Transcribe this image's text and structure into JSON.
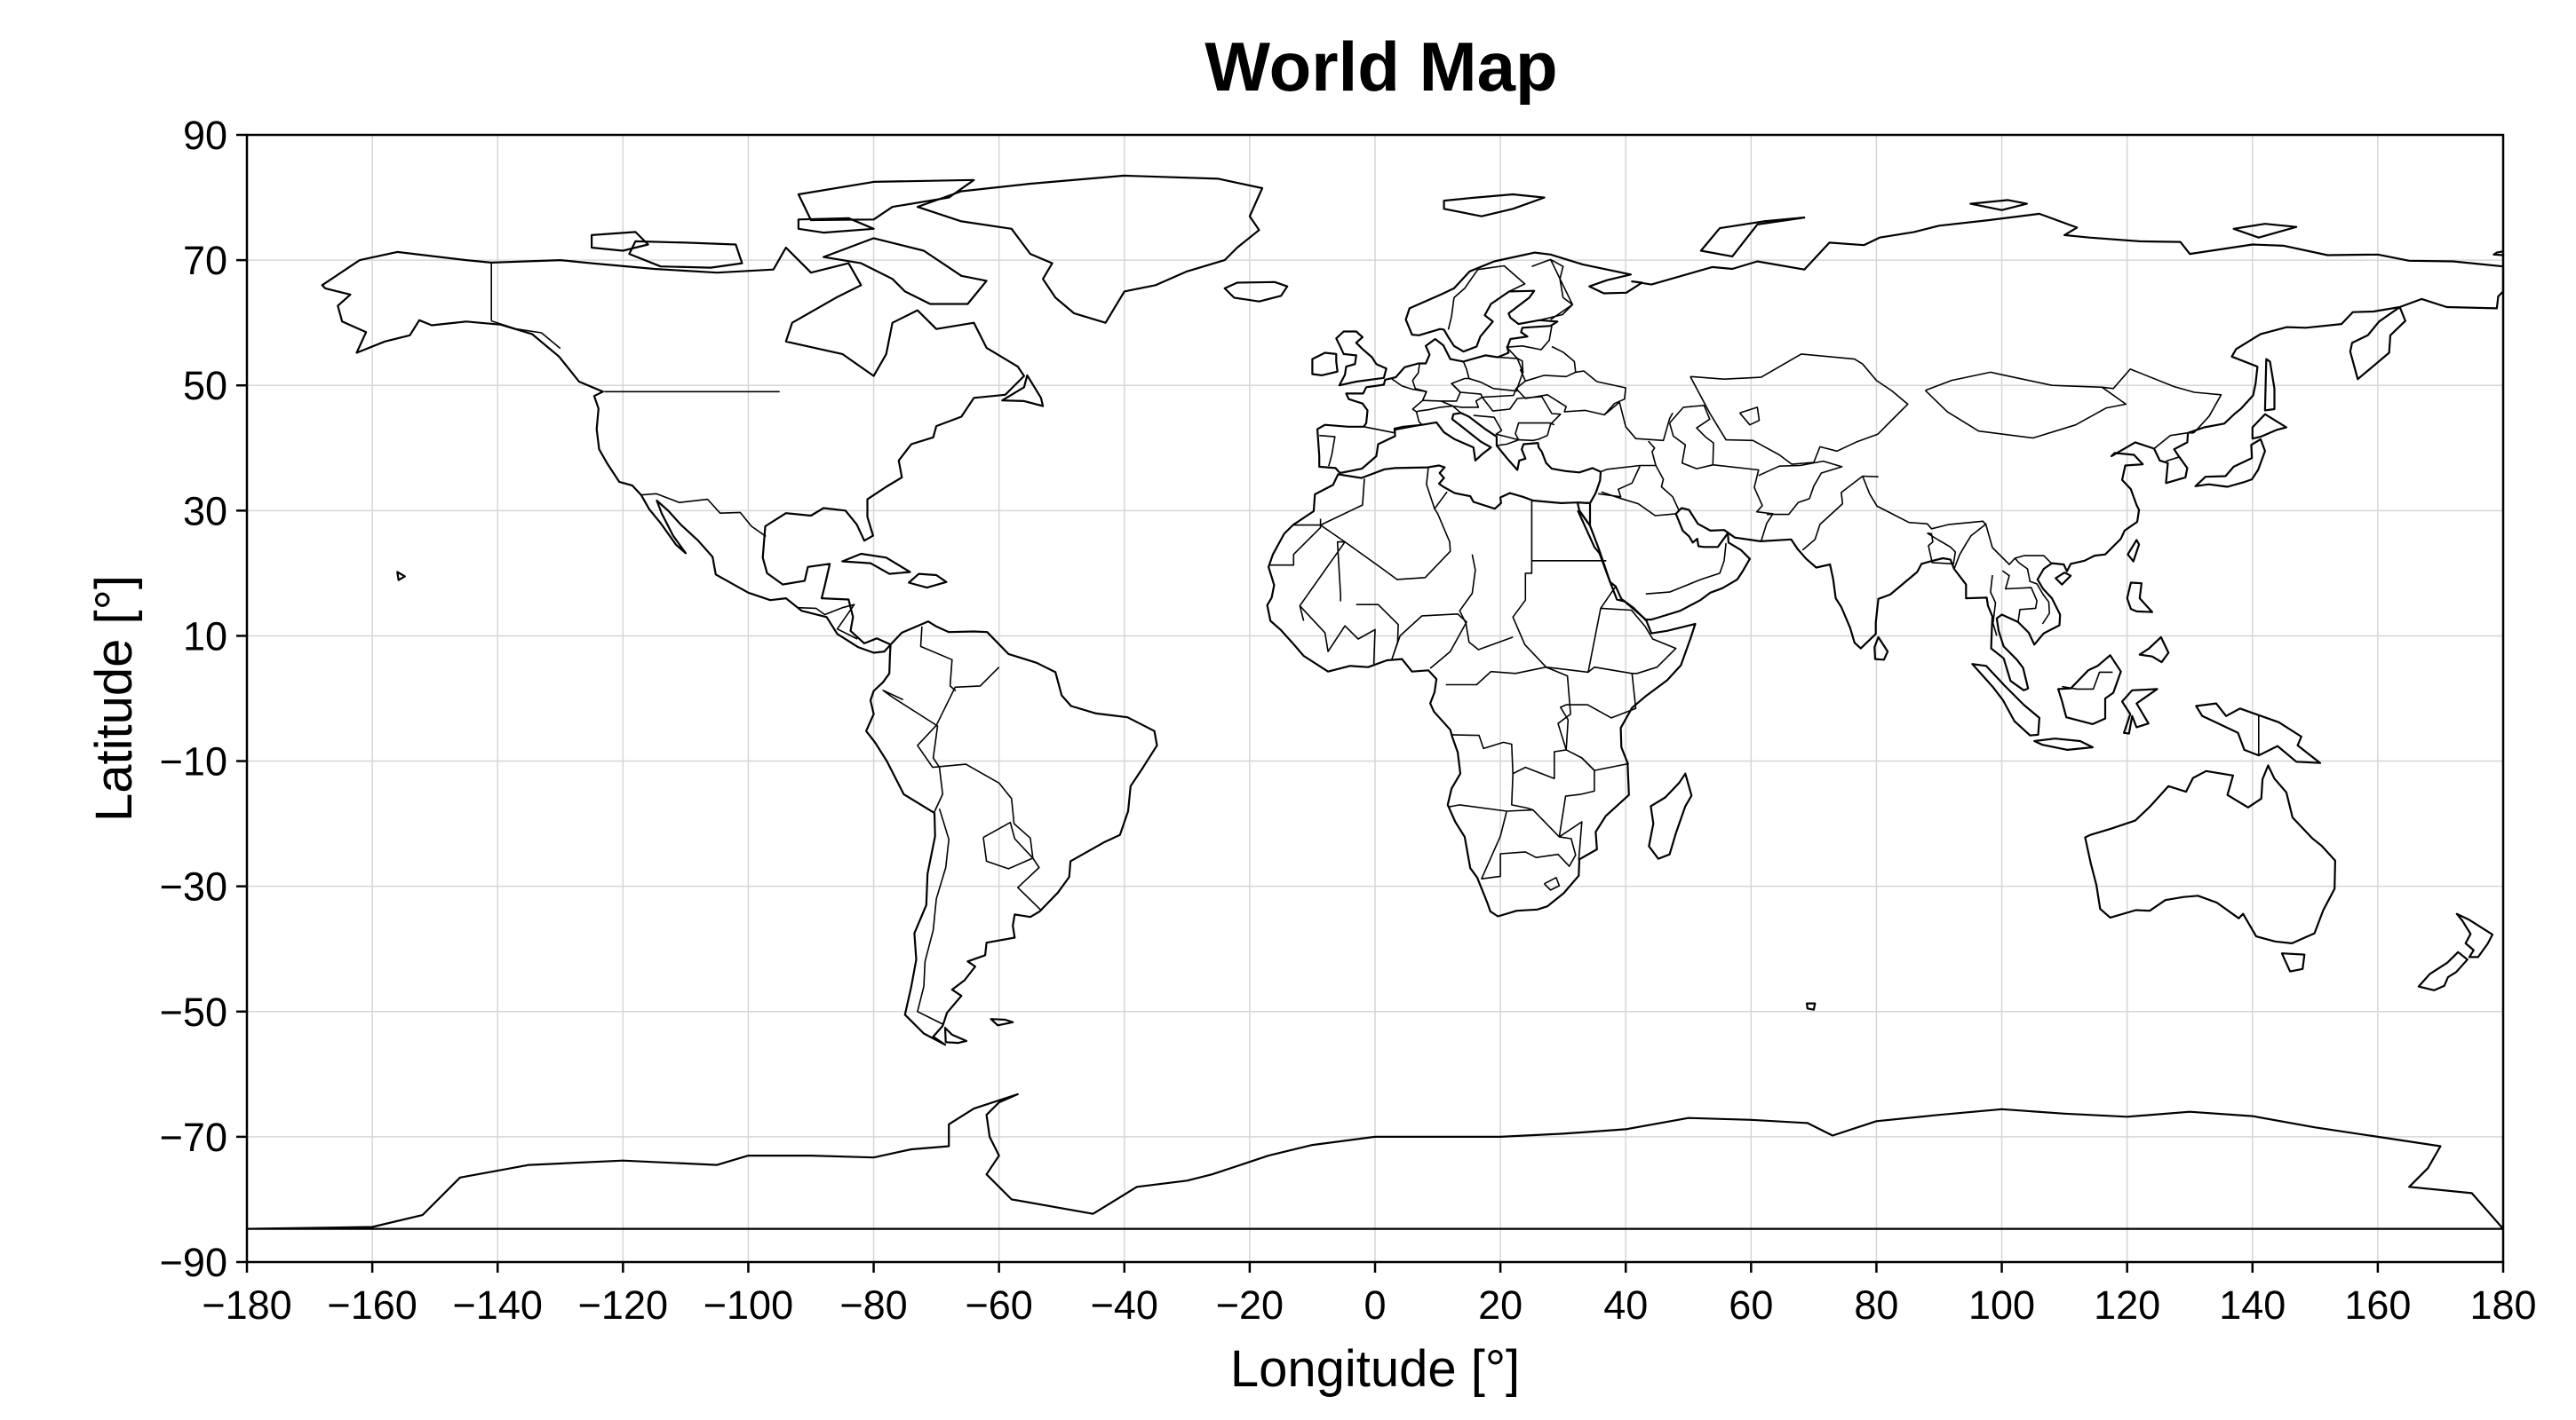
{
  "chart_data": {
    "type": "map",
    "title": "World Map",
    "xlabel": "Longitude [°]",
    "ylabel": "Latitude [°]",
    "xlim": [
      -180,
      180
    ],
    "ylim": [
      -90,
      90
    ],
    "xticks": [
      -180,
      -160,
      -140,
      -120,
      -100,
      -80,
      -60,
      -40,
      -20,
      0,
      20,
      40,
      60,
      80,
      100,
      120,
      140,
      160,
      180
    ],
    "yticks": [
      -90,
      -70,
      -50,
      -30,
      -10,
      10,
      30,
      50,
      70,
      90
    ],
    "xtick_labels": [
      "−180",
      "−160",
      "−140",
      "−120",
      "−100",
      "−80",
      "−60",
      "−40",
      "−20",
      "0",
      "20",
      "40",
      "60",
      "80",
      "100",
      "120",
      "140",
      "160",
      "180"
    ],
    "ytick_labels": [
      "−90",
      "−70",
      "−50",
      "−30",
      "−10",
      "10",
      "30",
      "50",
      "70",
      "90"
    ],
    "grid": true,
    "line_color": "#000000",
    "grid_color": "#d6d6d6"
  }
}
